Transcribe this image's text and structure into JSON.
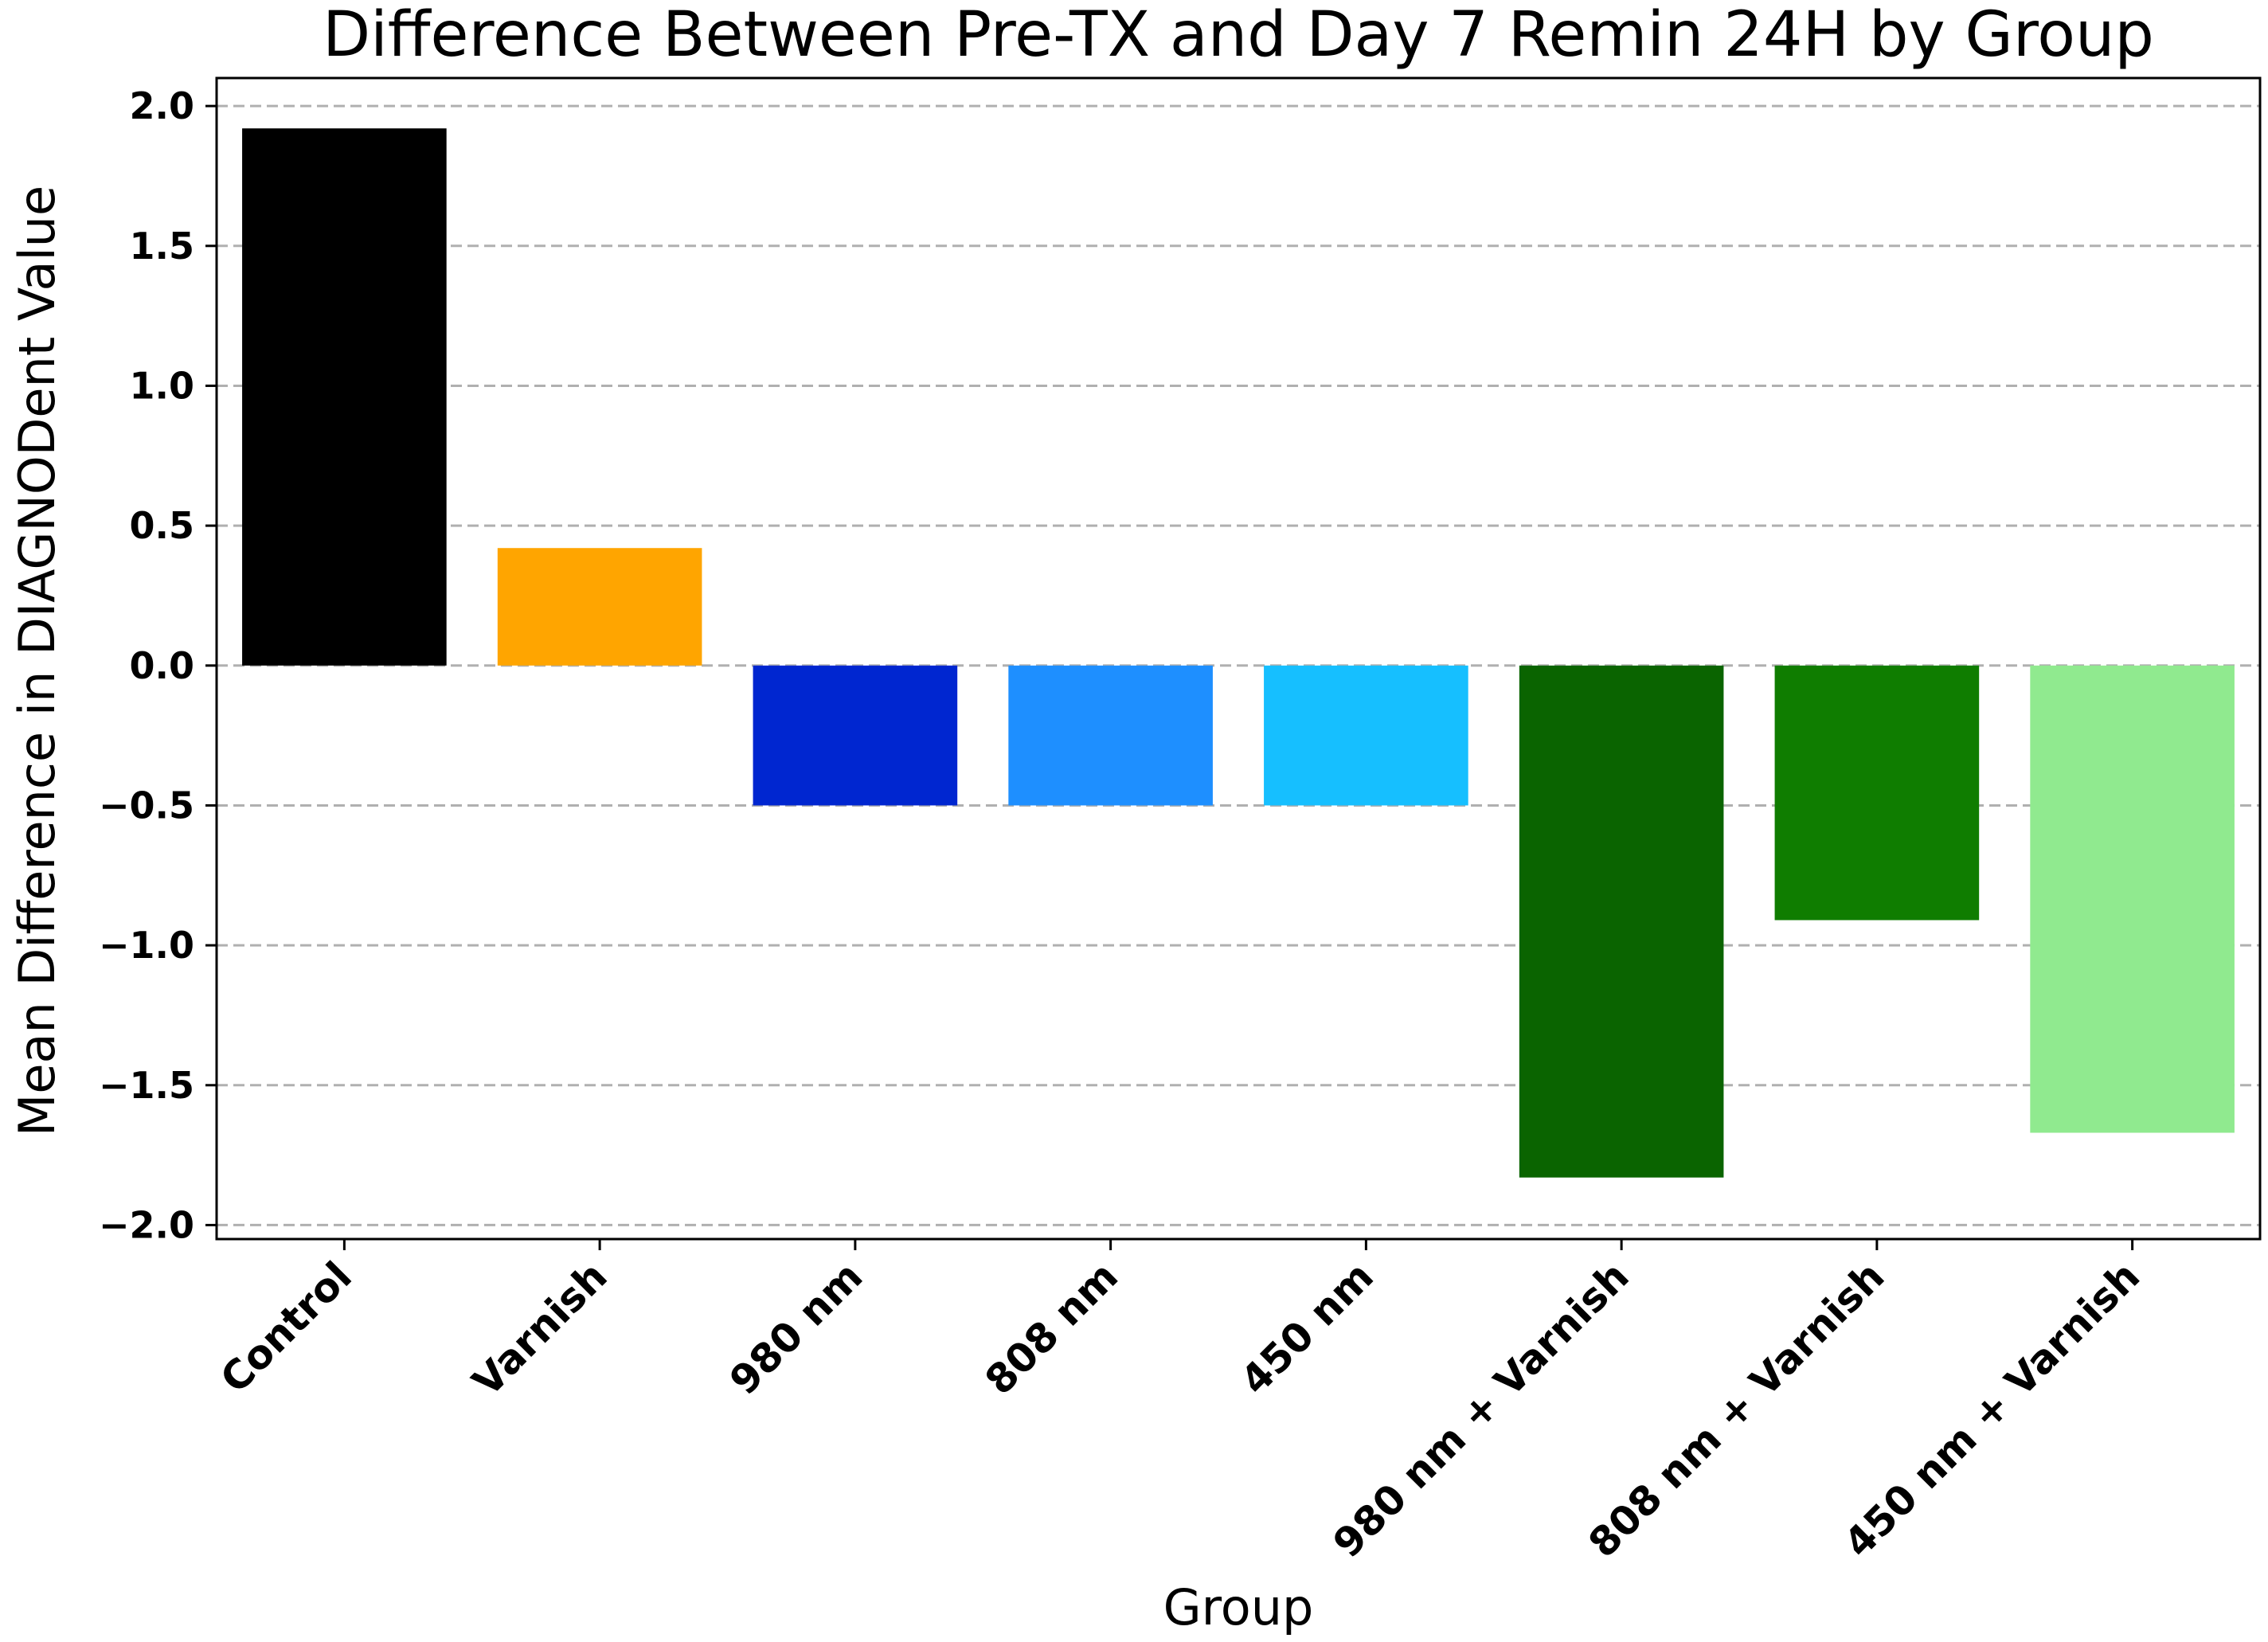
{
  "chart_data": {
    "type": "bar",
    "title": "Difference Between Pre-TX and Day 7 Remin 24H by Group",
    "xlabel": "Group",
    "ylabel": "Mean Difference in DIAGNODent Value",
    "categories": [
      "Control",
      "Varnish",
      "980 nm",
      "808 nm",
      "450 nm",
      "980 nm + Varnish",
      "808 nm + Varnish",
      "450 nm + Varnish"
    ],
    "values": [
      1.92,
      0.42,
      -0.5,
      -0.5,
      -0.5,
      -1.83,
      -0.91,
      -1.67
    ],
    "colors": [
      "#000000",
      "#FFA500",
      "#0026D0",
      "#1E8FFF",
      "#16BFFF",
      "#0A6400",
      "#0F7D00",
      "#90EA8F"
    ],
    "ylim": [
      -2.05,
      2.1
    ],
    "yticks": [
      2.0,
      1.5,
      1.0,
      0.5,
      0.0,
      -0.5,
      -1.0,
      -1.5,
      -2.0
    ],
    "ytick_labels": [
      "2.0",
      "1.5",
      "1.0",
      "0.5",
      "0.0",
      "−0.5",
      "−1.0",
      "−1.5",
      "−2.0"
    ],
    "grid": "y-dashed",
    "legend": "none"
  }
}
